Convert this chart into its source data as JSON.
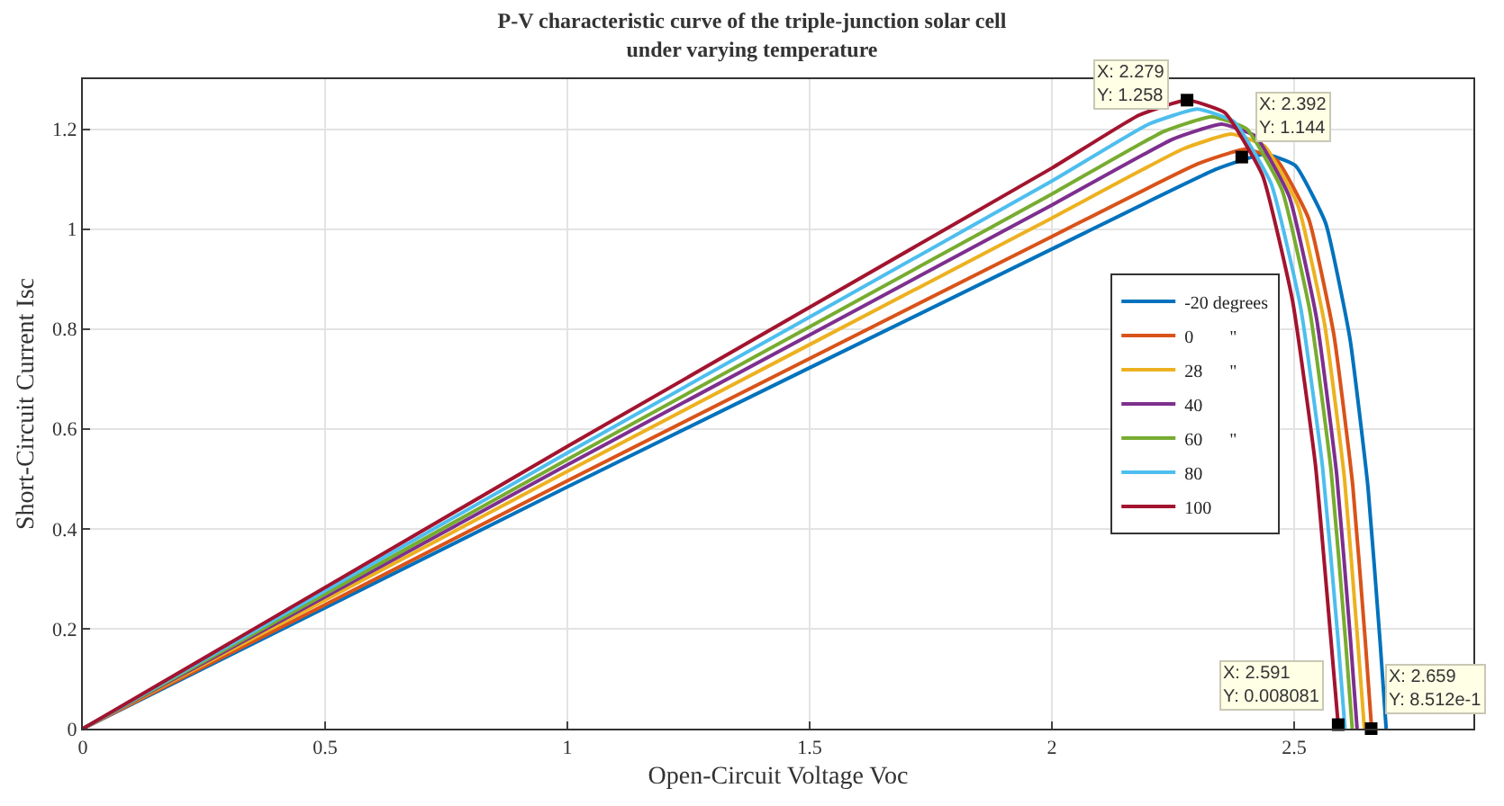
{
  "chart_data": {
    "type": "line",
    "title": "P-V characteristic curve of the triple-junction solar cell\nunder varying temperature",
    "xlabel": "Open-Circuit Voltage Voc",
    "ylabel": "Short-Circuit Current Isc",
    "xlim": [
      0,
      2.87
    ],
    "ylim": [
      0,
      1.3
    ],
    "xticks": [
      0,
      0.5,
      1,
      1.5,
      2,
      2.5
    ],
    "yticks": [
      0,
      0.2,
      0.4,
      0.6,
      0.8,
      1,
      1.2
    ],
    "grid": true,
    "legend": "right",
    "marker": "none",
    "line_style": "solid",
    "series": [
      {
        "name": "-20 degrees",
        "color": "#0072bd",
        "x": [
          0,
          1,
          2,
          2.34,
          2.44,
          2.5025,
          2.565,
          2.615,
          2.6525,
          2.6775,
          2.69
        ],
        "values": [
          0,
          0.484,
          0.96,
          1.12,
          1.15,
          1.127,
          1.012,
          0.782,
          0.483,
          0.173,
          0
        ]
      },
      {
        "name": "0        \"",
        "color": "#d95319",
        "x": [
          0,
          1,
          2,
          2.3,
          2.4,
          2.465,
          2.53,
          2.582,
          2.621,
          2.647,
          2.66
        ],
        "values": [
          0,
          0.496,
          0.985,
          1.13,
          1.16,
          1.137,
          1.021,
          0.789,
          0.487,
          0.174,
          0
        ]
      },
      {
        "name": "28      \"",
        "color": "#edb120",
        "x": [
          0,
          1,
          2,
          2.27,
          2.37,
          2.439,
          2.508,
          2.563,
          2.604,
          2.631,
          2.645
        ],
        "values": [
          0,
          0.515,
          1.022,
          1.16,
          1.19,
          1.166,
          1.047,
          0.809,
          0.5,
          0.179,
          0
        ]
      },
      {
        "name": "40",
        "color": "#7e2f8e",
        "x": [
          0,
          1,
          2,
          2.25,
          2.35,
          2.42,
          2.49,
          2.546,
          2.588,
          2.616,
          2.63
        ],
        "values": [
          0,
          0.528,
          1.048,
          1.18,
          1.21,
          1.186,
          1.065,
          0.823,
          0.508,
          0.182,
          0
        ]
      },
      {
        "name": "60      \"",
        "color": "#77ac30",
        "x": [
          0,
          1,
          2,
          2.23,
          2.33,
          2.4025,
          2.475,
          2.533,
          2.5765,
          2.6055,
          2.62
        ],
        "values": [
          0,
          0.539,
          1.07,
          1.195,
          1.225,
          1.2,
          1.078,
          0.833,
          0.515,
          0.184,
          0
        ]
      },
      {
        "name": "80",
        "color": "#4dbeee",
        "x": [
          0,
          1,
          2,
          2.2,
          2.3,
          2.376,
          2.4525,
          2.5135,
          2.559,
          2.59,
          2.605
        ],
        "values": [
          0,
          0.552,
          1.096,
          1.21,
          1.24,
          1.215,
          1.091,
          0.843,
          0.521,
          0.186,
          0
        ]
      },
      {
        "name": "100",
        "color": "#a2142f",
        "x": [
          0,
          1,
          2,
          2.18,
          2.279,
          2.357,
          2.435,
          2.497,
          2.544,
          2.575,
          2.591
        ],
        "values": [
          0,
          0.565,
          1.122,
          1.228,
          1.258,
          1.233,
          1.107,
          0.855,
          0.528,
          0.189,
          0.008
        ]
      }
    ],
    "annotations": [
      {
        "text": "X: 2.279\nY: 1.258",
        "x": 2.279,
        "y": 1.258
      },
      {
        "text": "X: 2.392\nY: 1.144",
        "x": 2.392,
        "y": 1.144
      },
      {
        "text": "X: 2.591\nY: 0.008081",
        "x": 2.591,
        "y": 0.008
      },
      {
        "text": "X: 2.659\nY: 8.512e-1",
        "x": 2.659,
        "y": 0
      }
    ]
  }
}
